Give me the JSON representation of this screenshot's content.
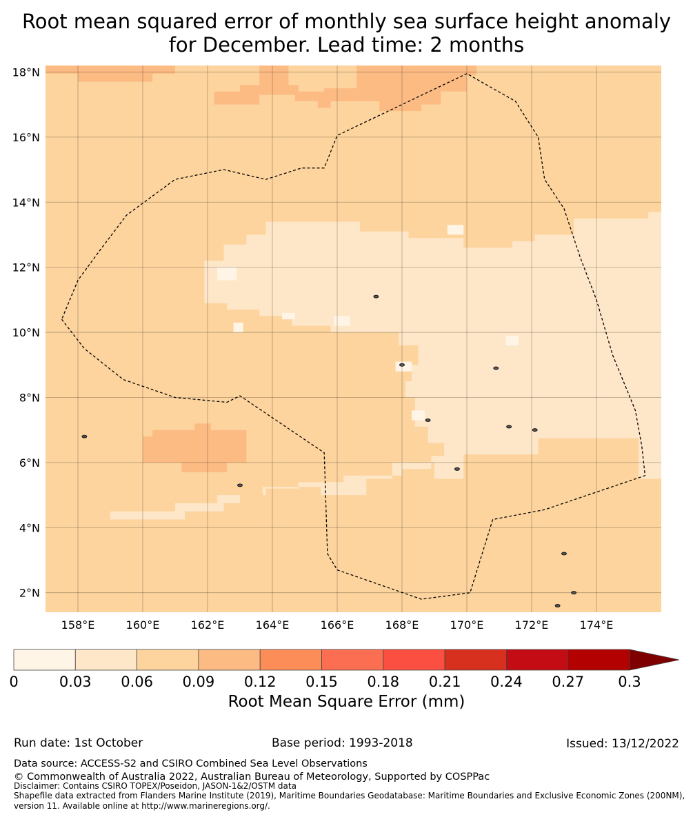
{
  "title_line1": "Root mean squared error of monthly sea surface height anomaly",
  "title_line2": "for December. Lead time: 2 months",
  "map": {
    "lon_range": [
      157,
      176
    ],
    "lat_range": [
      1.4,
      18.2
    ],
    "lon_ticks": [
      158,
      160,
      162,
      164,
      166,
      168,
      170,
      172,
      174
    ],
    "lon_tick_labels": [
      "158°E",
      "160°E",
      "162°E",
      "164°E",
      "166°E",
      "168°E",
      "170°E",
      "172°E",
      "174°E"
    ],
    "lat_ticks": [
      2,
      4,
      6,
      8,
      10,
      12,
      14,
      16,
      18
    ],
    "lat_tick_labels": [
      "2°N",
      "4°N",
      "6°N",
      "8°N",
      "10°N",
      "12°N",
      "14°N",
      "16°N",
      "18°N"
    ],
    "eez_boundary": [
      [
        157.5,
        10.4
      ],
      [
        158.2,
        9.5
      ],
      [
        159.4,
        8.55
      ],
      [
        161,
        8.0
      ],
      [
        162.6,
        7.85
      ],
      [
        163.0,
        8.05
      ],
      [
        165.6,
        6.3
      ],
      [
        165.7,
        3.2
      ],
      [
        166.0,
        2.7
      ],
      [
        168.6,
        1.8
      ],
      [
        170.1,
        2.0
      ],
      [
        170.8,
        4.25
      ],
      [
        172.4,
        4.55
      ],
      [
        175.5,
        5.6
      ],
      [
        175.4,
        6.5
      ],
      [
        175.2,
        7.6
      ],
      [
        174.5,
        9.3
      ],
      [
        174.0,
        11.0
      ],
      [
        173.5,
        12.3
      ],
      [
        173.0,
        13.8
      ],
      [
        172.4,
        14.7
      ],
      [
        172.2,
        16.0
      ],
      [
        171.5,
        17.1
      ],
      [
        170.0,
        17.95
      ],
      [
        166.0,
        16.05
      ],
      [
        165.6,
        15.05
      ],
      [
        164.9,
        15.05
      ],
      [
        163.8,
        14.7
      ],
      [
        162.5,
        15.0
      ],
      [
        161.0,
        14.7
      ],
      [
        159.5,
        13.6
      ],
      [
        158.7,
        12.55
      ],
      [
        158.0,
        11.6
      ],
      [
        157.5,
        10.4
      ]
    ],
    "land_marks": [
      [
        158.2,
        6.8
      ],
      [
        163.0,
        5.3
      ],
      [
        168.8,
        7.3
      ],
      [
        171.3,
        7.1
      ],
      [
        172.1,
        7.0
      ],
      [
        173.0,
        3.2
      ],
      [
        173.3,
        2.0
      ],
      [
        169.7,
        5.8
      ],
      [
        168.0,
        9.0
      ],
      [
        167.2,
        11.1
      ],
      [
        170.9,
        8.9
      ],
      [
        172.8,
        1.6
      ]
    ]
  },
  "chart_data": {
    "type": "heatmap",
    "variable": "Root mean squared error of monthly sea surface height anomaly",
    "units": "mm",
    "colorbar_levels": [
      0,
      0.03,
      0.06,
      0.09,
      0.12,
      0.15,
      0.18,
      0.21,
      0.24,
      0.27,
      0.3
    ],
    "colorbar_colors": [
      "#fff5e6",
      "#fee6c8",
      "#fdd49e",
      "#fdbb84",
      "#fc8d59",
      "#fc6e51",
      "#fb5041",
      "#d7301f",
      "#c40c14",
      "#b30000",
      "#7f0000"
    ],
    "regions": [
      {
        "level": 0.06,
        "range": [
          0.03,
          0.06
        ],
        "polygon": [
          [
            157,
            4.5
          ],
          [
            159,
            4.5
          ],
          [
            159,
            4.25
          ],
          [
            161.3,
            4.25
          ],
          [
            161.3,
            4.5
          ],
          [
            162.5,
            4.5
          ],
          [
            162.5,
            4.75
          ],
          [
            163,
            4.75
          ],
          [
            163,
            5.0
          ],
          [
            163.7,
            5.0
          ],
          [
            163.7,
            5.25
          ],
          [
            165.5,
            5.25
          ],
          [
            165.5,
            5.0
          ],
          [
            166.9,
            5.0
          ],
          [
            166.9,
            5.5
          ],
          [
            167.7,
            5.5
          ],
          [
            167.7,
            6.0
          ],
          [
            169.0,
            6.0
          ],
          [
            169.0,
            5.5
          ],
          [
            169.9,
            5.5
          ],
          [
            169.9,
            6.25
          ],
          [
            172.2,
            6.25
          ],
          [
            172.2,
            6.75
          ],
          [
            175.3,
            6.75
          ],
          [
            175.3,
            5.5
          ],
          [
            175.5,
            5.5
          ],
          [
            175.8,
            5.5
          ],
          [
            176,
            5.5
          ],
          [
            176,
            13.7
          ],
          [
            175.6,
            13.7
          ],
          [
            175.6,
            13.5
          ],
          [
            173.3,
            13.5
          ],
          [
            173.3,
            13.0
          ],
          [
            172.1,
            13.0
          ],
          [
            172.1,
            12.8
          ],
          [
            171.4,
            12.8
          ],
          [
            171.4,
            12.6
          ],
          [
            169.9,
            12.6
          ],
          [
            169.9,
            12.9
          ],
          [
            168.2,
            12.9
          ],
          [
            168.2,
            13.1
          ],
          [
            166.7,
            13.1
          ],
          [
            166.7,
            13.4
          ],
          [
            163.8,
            13.4
          ],
          [
            163.8,
            13.0
          ],
          [
            163.2,
            13.0
          ],
          [
            163.2,
            12.7
          ],
          [
            162.5,
            12.7
          ],
          [
            162.5,
            12.2
          ],
          [
            161.9,
            12.2
          ],
          [
            161.9,
            10.9
          ],
          [
            162.6,
            10.9
          ],
          [
            162.6,
            10.7
          ],
          [
            163.6,
            10.7
          ],
          [
            163.6,
            10.5
          ],
          [
            164.6,
            10.5
          ],
          [
            164.6,
            10.2
          ],
          [
            165.8,
            10.2
          ],
          [
            165.8,
            10.0
          ],
          [
            167.9,
            10.0
          ],
          [
            167.9,
            9.6
          ],
          [
            168.5,
            9.6
          ],
          [
            168.5,
            9.0
          ],
          [
            168.3,
            9.0
          ],
          [
            168.3,
            8.5
          ],
          [
            168.1,
            8.5
          ],
          [
            168.1,
            8.0
          ],
          [
            168.4,
            8.0
          ],
          [
            168.4,
            7.1
          ],
          [
            168.8,
            7.1
          ],
          [
            168.8,
            6.6
          ],
          [
            169.3,
            6.6
          ],
          [
            169.3,
            6.2
          ],
          [
            168.9,
            6.2
          ],
          [
            168.9,
            5.8
          ],
          [
            168.0,
            5.8
          ],
          [
            168.0,
            5.6
          ],
          [
            166.2,
            5.6
          ],
          [
            166.2,
            5.4
          ],
          [
            164.8,
            5.4
          ],
          [
            164.8,
            5.2
          ],
          [
            163.8,
            5.2
          ],
          [
            163.8,
            5.0
          ],
          [
            162.3,
            5.0
          ],
          [
            162.3,
            4.75
          ],
          [
            161.0,
            4.75
          ],
          [
            161.0,
            4.5
          ],
          [
            157,
            4.5
          ]
        ]
      },
      {
        "level": 0.12,
        "range": [
          0.09,
          0.12
        ],
        "polygon": [
          [
            157,
            18.2
          ],
          [
            157,
            17.95
          ],
          [
            158.0,
            17.95
          ],
          [
            158.0,
            17.7
          ],
          [
            160.3,
            17.7
          ],
          [
            160.3,
            17.95
          ],
          [
            161.0,
            17.95
          ],
          [
            161.0,
            18.2
          ]
        ]
      },
      {
        "level": 0.12,
        "range": [
          0.09,
          0.12
        ],
        "polygon": [
          [
            162.2,
            17.4
          ],
          [
            163.0,
            17.4
          ],
          [
            163.0,
            17.6
          ],
          [
            163.6,
            17.6
          ],
          [
            163.6,
            18.2
          ],
          [
            164.5,
            18.2
          ],
          [
            164.5,
            17.6
          ],
          [
            164.8,
            17.6
          ],
          [
            164.8,
            17.4
          ],
          [
            165.6,
            17.4
          ],
          [
            165.6,
            17.5
          ],
          [
            166.6,
            17.5
          ],
          [
            166.6,
            18.2
          ],
          [
            170.3,
            18.2
          ],
          [
            170.3,
            17.9
          ],
          [
            170.0,
            17.9
          ],
          [
            170.0,
            17.4
          ],
          [
            169.2,
            17.4
          ],
          [
            169.2,
            17.0
          ],
          [
            168.6,
            17.0
          ],
          [
            168.6,
            16.8
          ],
          [
            167.3,
            16.8
          ],
          [
            167.3,
            17.1
          ],
          [
            165.8,
            17.1
          ],
          [
            165.8,
            16.9
          ],
          [
            165.4,
            16.9
          ],
          [
            165.4,
            17.1
          ],
          [
            164.7,
            17.1
          ],
          [
            164.7,
            17.3
          ],
          [
            163.6,
            17.3
          ],
          [
            163.6,
            17.0
          ],
          [
            162.2,
            17.0
          ]
        ]
      },
      {
        "level": 0.12,
        "range": [
          0.09,
          0.12
        ],
        "polygon": [
          [
            160.8,
            6.0
          ],
          [
            161.2,
            6.0
          ],
          [
            161.2,
            5.7
          ],
          [
            162.6,
            5.7
          ],
          [
            162.6,
            6.0
          ],
          [
            163.2,
            6.0
          ],
          [
            163.2,
            5.7
          ],
          [
            163.2,
            6.2
          ],
          [
            163.2,
            7.0
          ],
          [
            162.1,
            7.0
          ],
          [
            162.1,
            7.2
          ],
          [
            161.6,
            7.2
          ],
          [
            161.6,
            7.0
          ],
          [
            160.3,
            7.0
          ],
          [
            160.3,
            6.8
          ],
          [
            160.0,
            6.8
          ],
          [
            160.0,
            6.0
          ],
          [
            160.8,
            6.0
          ]
        ]
      }
    ],
    "speckles": [
      [
        169.4,
        13.0,
        0.5,
        0.3
      ],
      [
        162.3,
        11.6,
        0.6,
        0.4
      ],
      [
        165.9,
        10.2,
        0.5,
        0.3
      ],
      [
        171.2,
        9.6,
        0.4,
        0.3
      ],
      [
        168.3,
        7.3,
        0.4,
        0.3
      ],
      [
        167.8,
        8.8,
        0.5,
        0.3
      ],
      [
        164.3,
        10.4,
        0.4,
        0.2
      ],
      [
        162.8,
        10.0,
        0.3,
        0.3
      ]
    ]
  },
  "colorbar": {
    "tick_labels": [
      "0",
      "0.03",
      "0.06",
      "0.09",
      "0.12",
      "0.15",
      "0.18",
      "0.21",
      "0.24",
      "0.27",
      "0.3"
    ],
    "title": "Root Mean Square Error (mm)"
  },
  "footer": {
    "run_date": "Run date: 1st October",
    "base_period": "Base period: 1993-2018",
    "issued": "Issued: 13/12/2022",
    "data_source": "Data source: ACCESS-S2 and CSIRO Combined Sea Level Observations",
    "copyright": "© Commonwealth of Australia 2022, Australian Bureau of Meteorology, Supported by COSPPac",
    "disclaimer": "Disclaimer: Contains CSIRO TOPEX/Poseidon, JASON-1&2/OSTM data",
    "shapefile": "Shapefile data extracted from Flanders Marine Institute (2019), Maritime Boundaries Geodatabase: Maritime Boundaries and Exclusive Economic Zones (200NM), version 11. Available online at http://www.marineregions.org/."
  }
}
